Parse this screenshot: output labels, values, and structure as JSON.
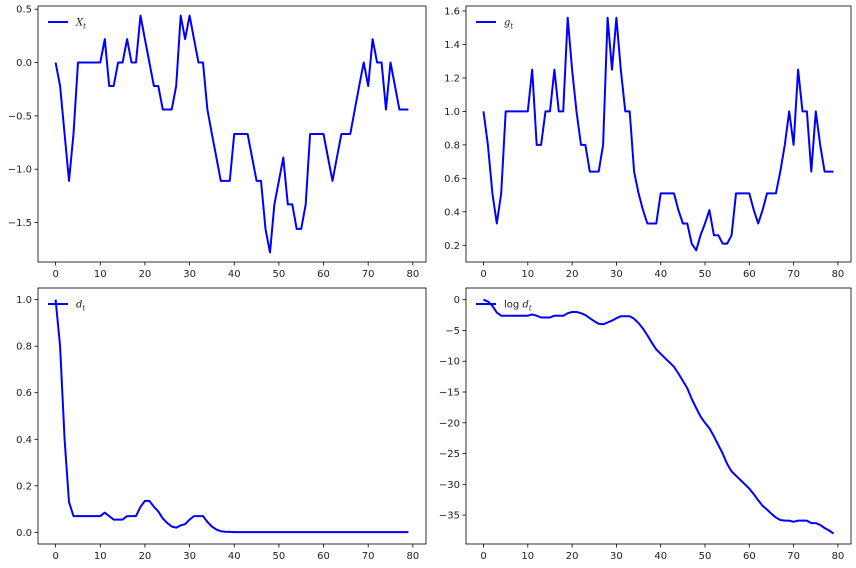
{
  "chart_data": [
    {
      "type": "line",
      "legend": "X_t",
      "legend_position": "top-left",
      "xlim": [
        -3.95,
        82.95
      ],
      "ylim": [
        -1.87,
        0.53
      ],
      "xticks": [
        0,
        10,
        20,
        30,
        40,
        50,
        60,
        70,
        80
      ],
      "yticks": [
        -1.5,
        -1.0,
        -0.5,
        0.0,
        0.5
      ],
      "ytick_labels": [
        "−1.5",
        "−1.0",
        "−0.5",
        "0.0",
        "0.5"
      ],
      "series": [
        {
          "color": "#0000ff",
          "x": [
            0,
            1,
            2,
            3,
            4,
            5,
            6,
            7,
            8,
            9,
            10,
            11,
            12,
            13,
            14,
            15,
            16,
            17,
            18,
            19,
            20,
            21,
            22,
            23,
            24,
            25,
            26,
            27,
            28,
            29,
            30,
            31,
            32,
            33,
            34,
            35,
            36,
            37,
            38,
            39,
            40,
            41,
            42,
            43,
            44,
            45,
            46,
            47,
            48,
            49,
            50,
            51,
            52,
            53,
            54,
            55,
            56,
            57,
            58,
            59,
            60,
            61,
            62,
            63,
            64,
            65,
            66,
            67,
            68,
            69,
            70,
            71,
            72,
            73,
            74,
            75,
            76,
            77,
            78,
            79
          ],
          "y": [
            0,
            -0.22,
            -0.67,
            -1.11,
            -0.67,
            0,
            0,
            0,
            0,
            0,
            0,
            0.22,
            -0.22,
            -0.22,
            0,
            0,
            0.22,
            0,
            0,
            0.44,
            0.22,
            0,
            -0.22,
            -0.22,
            -0.44,
            -0.44,
            -0.44,
            -0.22,
            0.44,
            0.22,
            0.44,
            0.22,
            0,
            0,
            -0.44,
            -0.67,
            -0.89,
            -1.11,
            -1.11,
            -1.11,
            -0.67,
            -0.67,
            -0.67,
            -0.67,
            -0.89,
            -1.11,
            -1.11,
            -1.56,
            -1.78,
            -1.33,
            -1.11,
            -0.89,
            -1.33,
            -1.33,
            -1.56,
            -1.56,
            -1.33,
            -0.67,
            -0.67,
            -0.67,
            -0.67,
            -0.89,
            -1.11,
            -0.89,
            -0.67,
            -0.67,
            -0.67,
            -0.44,
            -0.22,
            0,
            -0.22,
            0.22,
            0,
            0,
            -0.44,
            0,
            -0.22,
            -0.44,
            -0.44,
            -0.44
          ]
        }
      ]
    },
    {
      "type": "line",
      "legend": "g_t",
      "legend_position": "top-left",
      "xlim": [
        -3.95,
        82.95
      ],
      "ylim": [
        0.1,
        1.63
      ],
      "xticks": [
        0,
        10,
        20,
        30,
        40,
        50,
        60,
        70,
        80
      ],
      "yticks": [
        0.2,
        0.4,
        0.6,
        0.8,
        1.0,
        1.2,
        1.4,
        1.6
      ],
      "ytick_labels": [
        "0.2",
        "0.4",
        "0.6",
        "0.8",
        "1.0",
        "1.2",
        "1.4",
        "1.6"
      ],
      "series": [
        {
          "color": "#0000ff",
          "x": [
            0,
            1,
            2,
            3,
            4,
            5,
            6,
            7,
            8,
            9,
            10,
            11,
            12,
            13,
            14,
            15,
            16,
            17,
            18,
            19,
            20,
            21,
            22,
            23,
            24,
            25,
            26,
            27,
            28,
            29,
            30,
            31,
            32,
            33,
            34,
            35,
            36,
            37,
            38,
            39,
            40,
            41,
            42,
            43,
            44,
            45,
            46,
            47,
            48,
            49,
            50,
            51,
            52,
            53,
            54,
            55,
            56,
            57,
            58,
            59,
            60,
            61,
            62,
            63,
            64,
            65,
            66,
            67,
            68,
            69,
            70,
            71,
            72,
            73,
            74,
            75,
            76,
            77,
            78,
            79
          ],
          "y": [
            1.0,
            0.8,
            0.51,
            0.33,
            0.51,
            1.0,
            1.0,
            1.0,
            1.0,
            1.0,
            1.0,
            1.25,
            0.8,
            0.8,
            1.0,
            1.0,
            1.25,
            1.0,
            1.0,
            1.56,
            1.25,
            1.0,
            0.8,
            0.8,
            0.64,
            0.64,
            0.64,
            0.8,
            1.56,
            1.25,
            1.56,
            1.25,
            1.0,
            1.0,
            0.64,
            0.51,
            0.41,
            0.33,
            0.33,
            0.33,
            0.51,
            0.51,
            0.51,
            0.51,
            0.41,
            0.33,
            0.33,
            0.21,
            0.17,
            0.26,
            0.33,
            0.41,
            0.26,
            0.26,
            0.21,
            0.21,
            0.26,
            0.51,
            0.51,
            0.51,
            0.51,
            0.41,
            0.33,
            0.41,
            0.51,
            0.51,
            0.51,
            0.64,
            0.8,
            1.0,
            0.8,
            1.25,
            1.0,
            1.0,
            0.64,
            1.0,
            0.8,
            0.64,
            0.64,
            0.64
          ]
        }
      ]
    },
    {
      "type": "line",
      "legend": "d_t",
      "legend_position": "top-left",
      "xlim": [
        -3.95,
        82.95
      ],
      "ylim": [
        -0.05,
        1.05
      ],
      "xticks": [
        0,
        10,
        20,
        30,
        40,
        50,
        60,
        70,
        80
      ],
      "yticks": [
        0.0,
        0.2,
        0.4,
        0.6,
        0.8,
        1.0
      ],
      "ytick_labels": [
        "0.0",
        "0.2",
        "0.4",
        "0.6",
        "0.8",
        "1.0"
      ],
      "series": [
        {
          "color": "#0000ff",
          "x": [
            0,
            1,
            2,
            3,
            4,
            5,
            6,
            7,
            8,
            9,
            10,
            11,
            12,
            13,
            14,
            15,
            16,
            17,
            18,
            19,
            20,
            21,
            22,
            23,
            24,
            25,
            26,
            27,
            28,
            29,
            30,
            31,
            32,
            33,
            34,
            35,
            36,
            37,
            38,
            39,
            40,
            41,
            42,
            43,
            44,
            45,
            46,
            47,
            48,
            49,
            50,
            51,
            52,
            53,
            54,
            55,
            56,
            57,
            58,
            59,
            60,
            61,
            62,
            63,
            64,
            65,
            66,
            67,
            68,
            69,
            70,
            71,
            72,
            73,
            74,
            75,
            76,
            77,
            78,
            79
          ],
          "y": [
            1.0,
            0.8,
            0.4,
            0.13,
            0.07,
            0.07,
            0.07,
            0.07,
            0.07,
            0.07,
            0.07,
            0.085,
            0.07,
            0.055,
            0.055,
            0.055,
            0.07,
            0.07,
            0.07,
            0.11,
            0.135,
            0.135,
            0.11,
            0.09,
            0.06,
            0.04,
            0.025,
            0.02,
            0.03,
            0.035,
            0.055,
            0.07,
            0.07,
            0.07,
            0.045,
            0.025,
            0.012,
            0.005,
            0.003,
            0.002,
            0.001,
            0.001,
            0.001,
            0.001,
            0.001,
            0.001,
            0.001,
            0.001,
            0.001,
            0.001,
            0.001,
            0.001,
            0.001,
            0.001,
            0.001,
            0.001,
            0.001,
            0.001,
            0.001,
            0.001,
            0.001,
            0.001,
            0.001,
            0.001,
            0.001,
            0.001,
            0.001,
            0.001,
            0.001,
            0.001,
            0.001,
            0.001,
            0.001,
            0.001,
            0.001,
            0.001,
            0.001,
            0.001,
            0.001,
            0.001
          ]
        }
      ]
    },
    {
      "type": "line",
      "legend": "log d_t",
      "legend_position": "top-left",
      "xlim": [
        -3.95,
        82.95
      ],
      "ylim": [
        -39.7,
        1.9
      ],
      "xticks": [
        0,
        10,
        20,
        30,
        40,
        50,
        60,
        70,
        80
      ],
      "yticks": [
        -35,
        -30,
        -25,
        -20,
        -15,
        -10,
        -5,
        0
      ],
      "ytick_labels": [
        "−35",
        "−30",
        "−25",
        "−20",
        "−15",
        "−10",
        "−5",
        "0"
      ],
      "series": [
        {
          "color": "#0000ff",
          "x": [
            0,
            1,
            2,
            3,
            4,
            5,
            6,
            7,
            8,
            9,
            10,
            11,
            12,
            13,
            14,
            15,
            16,
            17,
            18,
            19,
            20,
            21,
            22,
            23,
            24,
            25,
            26,
            27,
            28,
            29,
            30,
            31,
            32,
            33,
            34,
            35,
            36,
            37,
            38,
            39,
            40,
            41,
            42,
            43,
            44,
            45,
            46,
            47,
            48,
            49,
            50,
            51,
            52,
            53,
            54,
            55,
            56,
            57,
            58,
            59,
            60,
            61,
            62,
            63,
            64,
            65,
            66,
            67,
            68,
            69,
            70,
            71,
            72,
            73,
            74,
            75,
            76,
            77,
            78,
            79
          ],
          "y": [
            0,
            -0.3,
            -1.0,
            -2.1,
            -2.6,
            -2.6,
            -2.6,
            -2.6,
            -2.6,
            -2.6,
            -2.6,
            -2.4,
            -2.6,
            -2.9,
            -2.9,
            -2.9,
            -2.6,
            -2.6,
            -2.6,
            -2.2,
            -2.0,
            -2.0,
            -2.2,
            -2.5,
            -3.0,
            -3.5,
            -3.9,
            -4.0,
            -3.7,
            -3.4,
            -3.0,
            -2.7,
            -2.7,
            -2.7,
            -3.1,
            -3.8,
            -4.7,
            -5.8,
            -7.0,
            -8.1,
            -8.8,
            -9.5,
            -10.2,
            -10.9,
            -12.0,
            -13.2,
            -14.4,
            -16.1,
            -17.6,
            -19.0,
            -20.0,
            -20.9,
            -22.2,
            -23.6,
            -25.0,
            -26.7,
            -27.9,
            -28.6,
            -29.3,
            -30.0,
            -30.7,
            -31.6,
            -32.6,
            -33.5,
            -34.1,
            -34.8,
            -35.4,
            -35.8,
            -35.9,
            -35.9,
            -36.1,
            -35.9,
            -35.9,
            -35.9,
            -36.3,
            -36.3,
            -36.6,
            -37.1,
            -37.5,
            -38.0
          ]
        }
      ]
    }
  ]
}
